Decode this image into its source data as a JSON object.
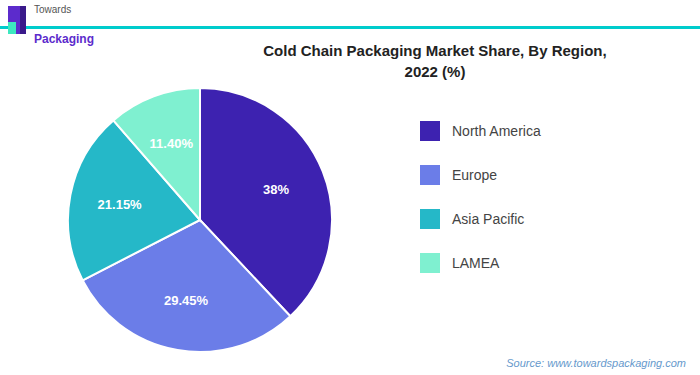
{
  "chart_data": {
    "type": "pie",
    "title": "Cold Chain Packaging Market Share, By Region,\n2022 (%)",
    "categories": [
      "North America",
      "Europe",
      "Asia Pacific",
      "LAMEA"
    ],
    "values": [
      38.0,
      29.45,
      21.15,
      11.4
    ],
    "value_labels": [
      "38%",
      "29.45%",
      "21.15%",
      "11.40%"
    ],
    "colors": [
      "#3d22b0",
      "#6b7de8",
      "#25b8c8",
      "#7ff0d0"
    ],
    "data_labels": true,
    "legend": "right",
    "annotations": [
      "Towards",
      "Packaging",
      "Source: www.towardspackaging.com"
    ]
  }
}
